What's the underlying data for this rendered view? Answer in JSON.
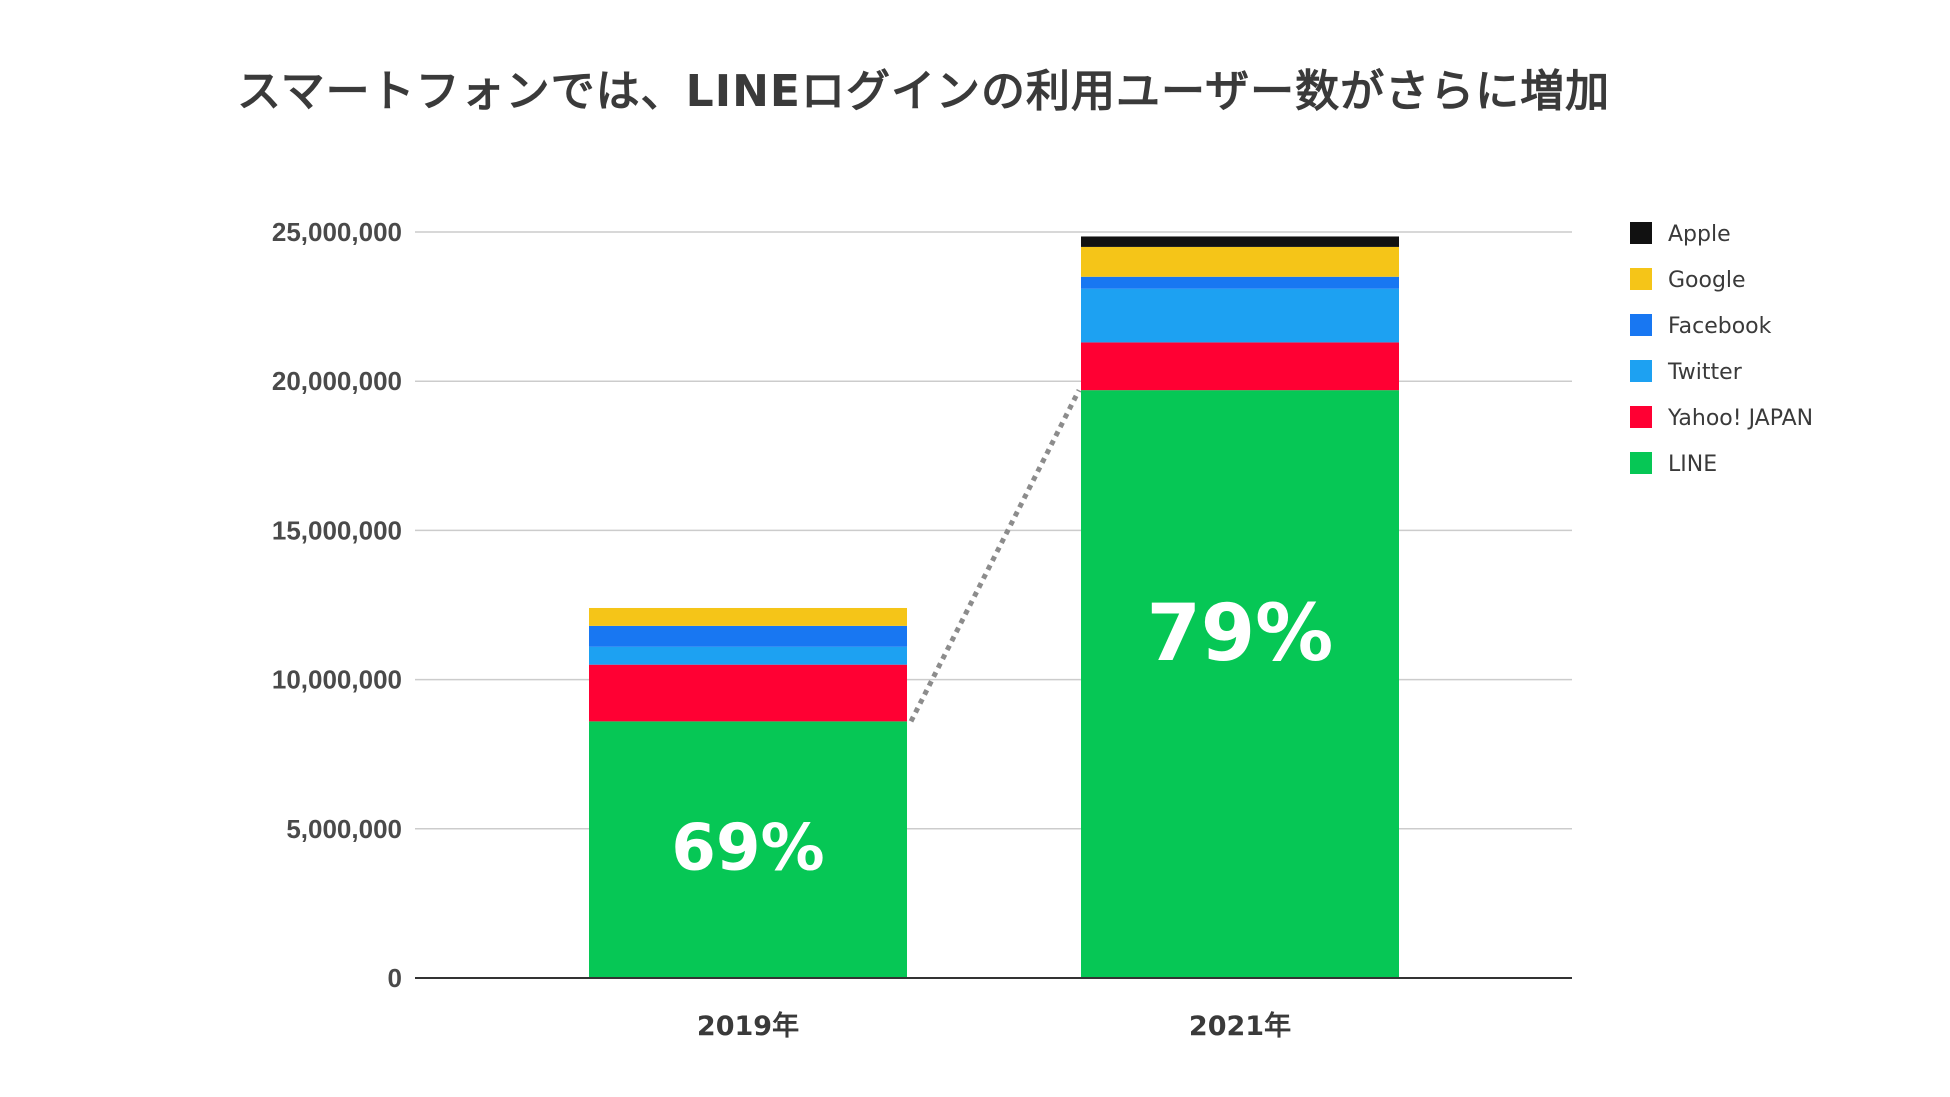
{
  "title": "スマートフォンでは、LINEログインの利用ユーザー数がさらに増加",
  "chart_data": {
    "type": "bar",
    "stacked": true,
    "title": "スマートフォンでは、LINEログインの利用ユーザー数がさらに増加",
    "xlabel": "",
    "ylabel": "",
    "categories": [
      "2019年",
      "2021年"
    ],
    "ylim": [
      0,
      25000000
    ],
    "yticks": [
      0,
      5000000,
      10000000,
      15000000,
      20000000,
      25000000
    ],
    "ytick_labels": [
      "0",
      "5,000,000",
      "10,000,000",
      "15,000,000",
      "20,000,000",
      "25,000,000"
    ],
    "grid": true,
    "legend_position": "right",
    "series": [
      {
        "name": "LINE",
        "color": "#06c755",
        "values": [
          8600000,
          19700000
        ]
      },
      {
        "name": "Yahoo! JAPAN",
        "color": "#ff0033",
        "values": [
          1900000,
          1600000
        ]
      },
      {
        "name": "Twitter",
        "color": "#1da1f2",
        "values": [
          600000,
          1800000
        ]
      },
      {
        "name": "Facebook",
        "color": "#1877f2",
        "values": [
          700000,
          400000
        ]
      },
      {
        "name": "Google",
        "color": "#f5c518",
        "values": [
          600000,
          1000000
        ]
      },
      {
        "name": "Apple",
        "color": "#111111",
        "values": [
          0,
          350000
        ]
      }
    ],
    "legend_order": [
      "Apple",
      "Google",
      "Facebook",
      "Twitter",
      "Yahoo! JAPAN",
      "LINE"
    ],
    "annotations": [
      {
        "category": "2019年",
        "series": "LINE",
        "text": "69%"
      },
      {
        "category": "2021年",
        "series": "LINE",
        "text": "79%"
      }
    ],
    "connector": {
      "style": "dotted",
      "color": "#8c8c8c",
      "from_category": "2019年",
      "to_category": "2021年",
      "series": "LINE"
    }
  }
}
